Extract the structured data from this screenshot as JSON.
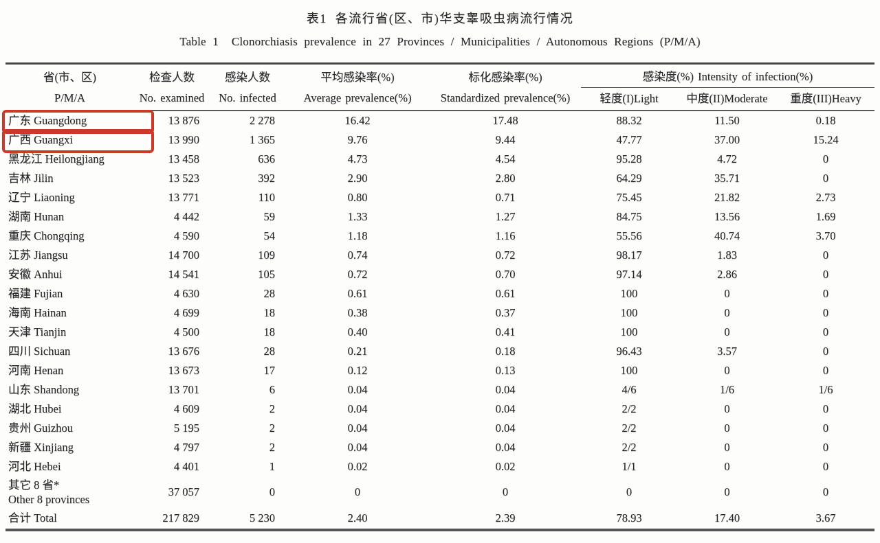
{
  "title": {
    "zh": "表1  各流行省(区、市)华支睾吸虫病流行情况",
    "en": "Table 1  Clonorchiasis prevalence in 27 Provinces / Municipalities / Autonomous Regions (P/M/A)"
  },
  "table": {
    "columns": [
      {
        "zh": "省(市、区)",
        "en": "P/M/A"
      },
      {
        "zh": "检查人数",
        "en": "No. examined"
      },
      {
        "zh": "感染人数",
        "en": "No. infected"
      },
      {
        "zh": "平均感染率(%)",
        "en": "Average prevalence(%)"
      },
      {
        "zh": "标化感染率(%)",
        "en": "Standardized prevalence(%)"
      }
    ],
    "intensity_group": {
      "label": "感染度(%) Intensity of infection(%)",
      "sub_columns": [
        "轻度(I)Light",
        "中度(II)Moderate",
        "重度(III)Heavy"
      ]
    },
    "rows": [
      {
        "name": "广东 Guangdong",
        "examined": "13 876",
        "infected": "2 278",
        "avg": "16.42",
        "std": "17.48",
        "light": "88.32",
        "moderate": "11.50",
        "heavy": "0.18",
        "highlighted": true
      },
      {
        "name": "广西 Guangxi",
        "examined": "13 990",
        "infected": "1 365",
        "avg": "9.76",
        "std": "9.44",
        "light": "47.77",
        "moderate": "37.00",
        "heavy": "15.24",
        "highlighted": true
      },
      {
        "name": "黑龙江 Heilongjiang",
        "examined": "13 458",
        "infected": "636",
        "avg": "4.73",
        "std": "4.54",
        "light": "95.28",
        "moderate": "4.72",
        "heavy": "0"
      },
      {
        "name": "吉林 Jilin",
        "examined": "13 523",
        "infected": "392",
        "avg": "2.90",
        "std": "2.80",
        "light": "64.29",
        "moderate": "35.71",
        "heavy": "0"
      },
      {
        "name": "辽宁 Liaoning",
        "examined": "13 771",
        "infected": "110",
        "avg": "0.80",
        "std": "0.71",
        "light": "75.45",
        "moderate": "21.82",
        "heavy": "2.73"
      },
      {
        "name": "湖南 Hunan",
        "examined": "4 442",
        "infected": "59",
        "avg": "1.33",
        "std": "1.27",
        "light": "84.75",
        "moderate": "13.56",
        "heavy": "1.69"
      },
      {
        "name": "重庆 Chongqing",
        "examined": "4 590",
        "infected": "54",
        "avg": "1.18",
        "std": "1.16",
        "light": "55.56",
        "moderate": "40.74",
        "heavy": "3.70"
      },
      {
        "name": "江苏 Jiangsu",
        "examined": "14 700",
        "infected": "109",
        "avg": "0.74",
        "std": "0.72",
        "light": "98.17",
        "moderate": "1.83",
        "heavy": "0"
      },
      {
        "name": "安徽 Anhui",
        "examined": "14 541",
        "infected": "105",
        "avg": "0.72",
        "std": "0.70",
        "light": "97.14",
        "moderate": "2.86",
        "heavy": "0"
      },
      {
        "name": "福建 Fujian",
        "examined": "4 630",
        "infected": "28",
        "avg": "0.61",
        "std": "0.61",
        "light": "100",
        "moderate": "0",
        "heavy": "0"
      },
      {
        "name": "海南 Hainan",
        "examined": "4 699",
        "infected": "18",
        "avg": "0.38",
        "std": "0.37",
        "light": "100",
        "moderate": "0",
        "heavy": "0"
      },
      {
        "name": "天津 Tianjin",
        "examined": "4 500",
        "infected": "18",
        "avg": "0.40",
        "std": "0.41",
        "light": "100",
        "moderate": "0",
        "heavy": "0"
      },
      {
        "name": "四川 Sichuan",
        "examined": "13 676",
        "infected": "28",
        "avg": "0.21",
        "std": "0.18",
        "light": "96.43",
        "moderate": "3.57",
        "heavy": "0"
      },
      {
        "name": "河南 Henan",
        "examined": "13 673",
        "infected": "17",
        "avg": "0.12",
        "std": "0.13",
        "light": "100",
        "moderate": "0",
        "heavy": "0"
      },
      {
        "name": "山东 Shandong",
        "examined": "13 701",
        "infected": "6",
        "avg": "0.04",
        "std": "0.04",
        "light": "4/6",
        "moderate": "1/6",
        "heavy": "1/6"
      },
      {
        "name": "湖北 Hubei",
        "examined": "4 609",
        "infected": "2",
        "avg": "0.04",
        "std": "0.04",
        "light": "2/2",
        "moderate": "0",
        "heavy": "0"
      },
      {
        "name": "贵州 Guizhou",
        "examined": "5 195",
        "infected": "2",
        "avg": "0.04",
        "std": "0.04",
        "light": "2/2",
        "moderate": "0",
        "heavy": "0"
      },
      {
        "name": "新疆 Xinjiang",
        "examined": "4 797",
        "infected": "2",
        "avg": "0.04",
        "std": "0.04",
        "light": "2/2",
        "moderate": "0",
        "heavy": "0"
      },
      {
        "name": "河北 Hebei",
        "examined": "4 401",
        "infected": "1",
        "avg": "0.02",
        "std": "0.02",
        "light": "1/1",
        "moderate": "0",
        "heavy": "0"
      },
      {
        "name": "其它 8 省*",
        "name2": "Other 8 provinces",
        "examined": "37 057",
        "infected": "0",
        "avg": "0",
        "std": "0",
        "light": "0",
        "moderate": "0",
        "heavy": "0"
      }
    ],
    "total": {
      "name": "合计 Total",
      "examined": "217 829",
      "infected": "5 230",
      "avg": "2.40",
      "std": "2.39",
      "light": "78.93",
      "moderate": "17.40",
      "heavy": "3.67"
    }
  },
  "annotations": {
    "highlighted_provinces": [
      "广东 Guangdong",
      "广西 Guangxi"
    ],
    "highlight_color": "#c93a28"
  }
}
